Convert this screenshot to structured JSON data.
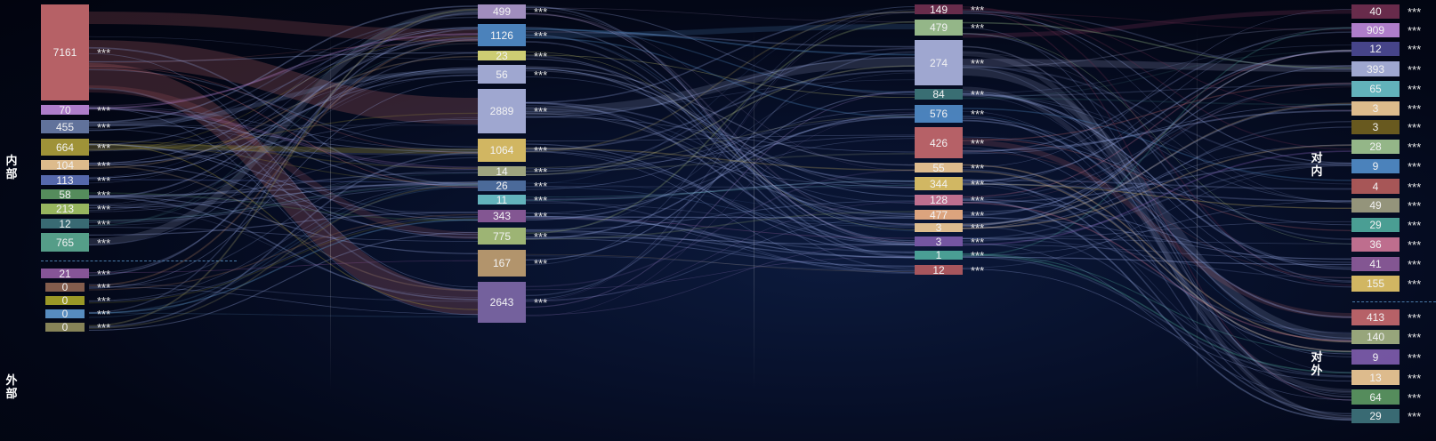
{
  "side_labels": {
    "internal": "内部",
    "external": "外部",
    "to_internal": "对内",
    "to_external": "对外"
  },
  "chart_data": {
    "type": "sankey",
    "marker": "***",
    "columns": [
      {
        "name": "",
        "nodes": [
          {
            "value": 7161,
            "color": "#c0666b"
          },
          {
            "value": 70,
            "color": "#b884d4"
          },
          {
            "value": 455,
            "color": "#6778a3"
          },
          {
            "value": 664,
            "color": "#a89a3a"
          },
          {
            "value": 104,
            "color": "#e9c593"
          },
          {
            "value": 113,
            "color": "#5b6fb5"
          },
          {
            "value": 58,
            "color": "#5a9460"
          },
          {
            "value": 213,
            "color": "#9fbf63"
          },
          {
            "value": 12,
            "color": "#3c7078"
          },
          {
            "value": 765,
            "color": "#5aa68f"
          },
          {
            "value": 21,
            "color": "#8e5a9e"
          },
          {
            "value": 0,
            "color": "#8a6250"
          },
          {
            "value": 0,
            "color": "#a3a028"
          },
          {
            "value": 0,
            "color": "#5c94c8"
          },
          {
            "value": 0,
            "color": "#8e8a5c"
          }
        ]
      },
      {
        "name": "",
        "nodes": [
          {
            "value": 499,
            "color": "#a995c8"
          },
          {
            "value": 1126,
            "color": "#4f89c4"
          },
          {
            "value": 23,
            "color": "#d8d878"
          },
          {
            "value": 56,
            "color": "#a8b0da"
          },
          {
            "value": 2889,
            "color": "#a8b0da"
          },
          {
            "value": 1064,
            "color": "#dcc066"
          },
          {
            "value": 14,
            "color": "#a7ad84"
          },
          {
            "value": 26,
            "color": "#4f6fa0"
          },
          {
            "value": 11,
            "color": "#68bcc4"
          },
          {
            "value": 343,
            "color": "#8a5a98"
          },
          {
            "value": 775,
            "color": "#a6bd78"
          },
          {
            "value": 167,
            "color": "#bc9c70"
          },
          {
            "value": 2643,
            "color": "#7a66a4"
          }
        ]
      },
      {
        "name": "",
        "nodes": [
          {
            "value": 149,
            "color": "#6e2e4e"
          },
          {
            "value": 479,
            "color": "#9cc08e"
          },
          {
            "value": 274,
            "color": "#a8b0da"
          },
          {
            "value": 84,
            "color": "#3c7478"
          },
          {
            "value": 576,
            "color": "#4f89c4"
          },
          {
            "value": 426,
            "color": "#c0666b"
          },
          {
            "value": 55,
            "color": "#e9c593"
          },
          {
            "value": 344,
            "color": "#dcc066"
          },
          {
            "value": 128,
            "color": "#c87494"
          },
          {
            "value": 477,
            "color": "#e8ac82"
          },
          {
            "value": 3,
            "color": "#e9c593"
          },
          {
            "value": 3,
            "color": "#7a5aa8"
          },
          {
            "value": 1,
            "color": "#4ea69a"
          },
          {
            "value": 12,
            "color": "#b05a60"
          }
        ]
      },
      {
        "name": "",
        "nodes": [
          {
            "value": 40,
            "color": "#6e2e4e"
          },
          {
            "value": 909,
            "color": "#b884d4"
          },
          {
            "value": 12,
            "color": "#4a4890"
          },
          {
            "value": 393,
            "color": "#a8b0da"
          },
          {
            "value": 65,
            "color": "#68bcc4"
          },
          {
            "value": 3,
            "color": "#e9c593"
          },
          {
            "value": 3,
            "color": "#6e5e20"
          },
          {
            "value": 28,
            "color": "#9cc08e"
          },
          {
            "value": 9,
            "color": "#4f89c4"
          },
          {
            "value": 4,
            "color": "#b05a5a"
          },
          {
            "value": 49,
            "color": "#9c9c80"
          },
          {
            "value": 29,
            "color": "#4ea69a"
          },
          {
            "value": 36,
            "color": "#c87494"
          },
          {
            "value": 41,
            "color": "#8a5a98"
          },
          {
            "value": 155,
            "color": "#dcc066"
          },
          {
            "value": 413,
            "color": "#c0666b"
          },
          {
            "value": 140,
            "color": "#9fae80"
          },
          {
            "value": 9,
            "color": "#7a5aa8"
          },
          {
            "value": 13,
            "color": "#e9c593"
          },
          {
            "value": 64,
            "color": "#5a9460"
          },
          {
            "value": 29,
            "color": "#3c7078"
          }
        ]
      }
    ]
  }
}
